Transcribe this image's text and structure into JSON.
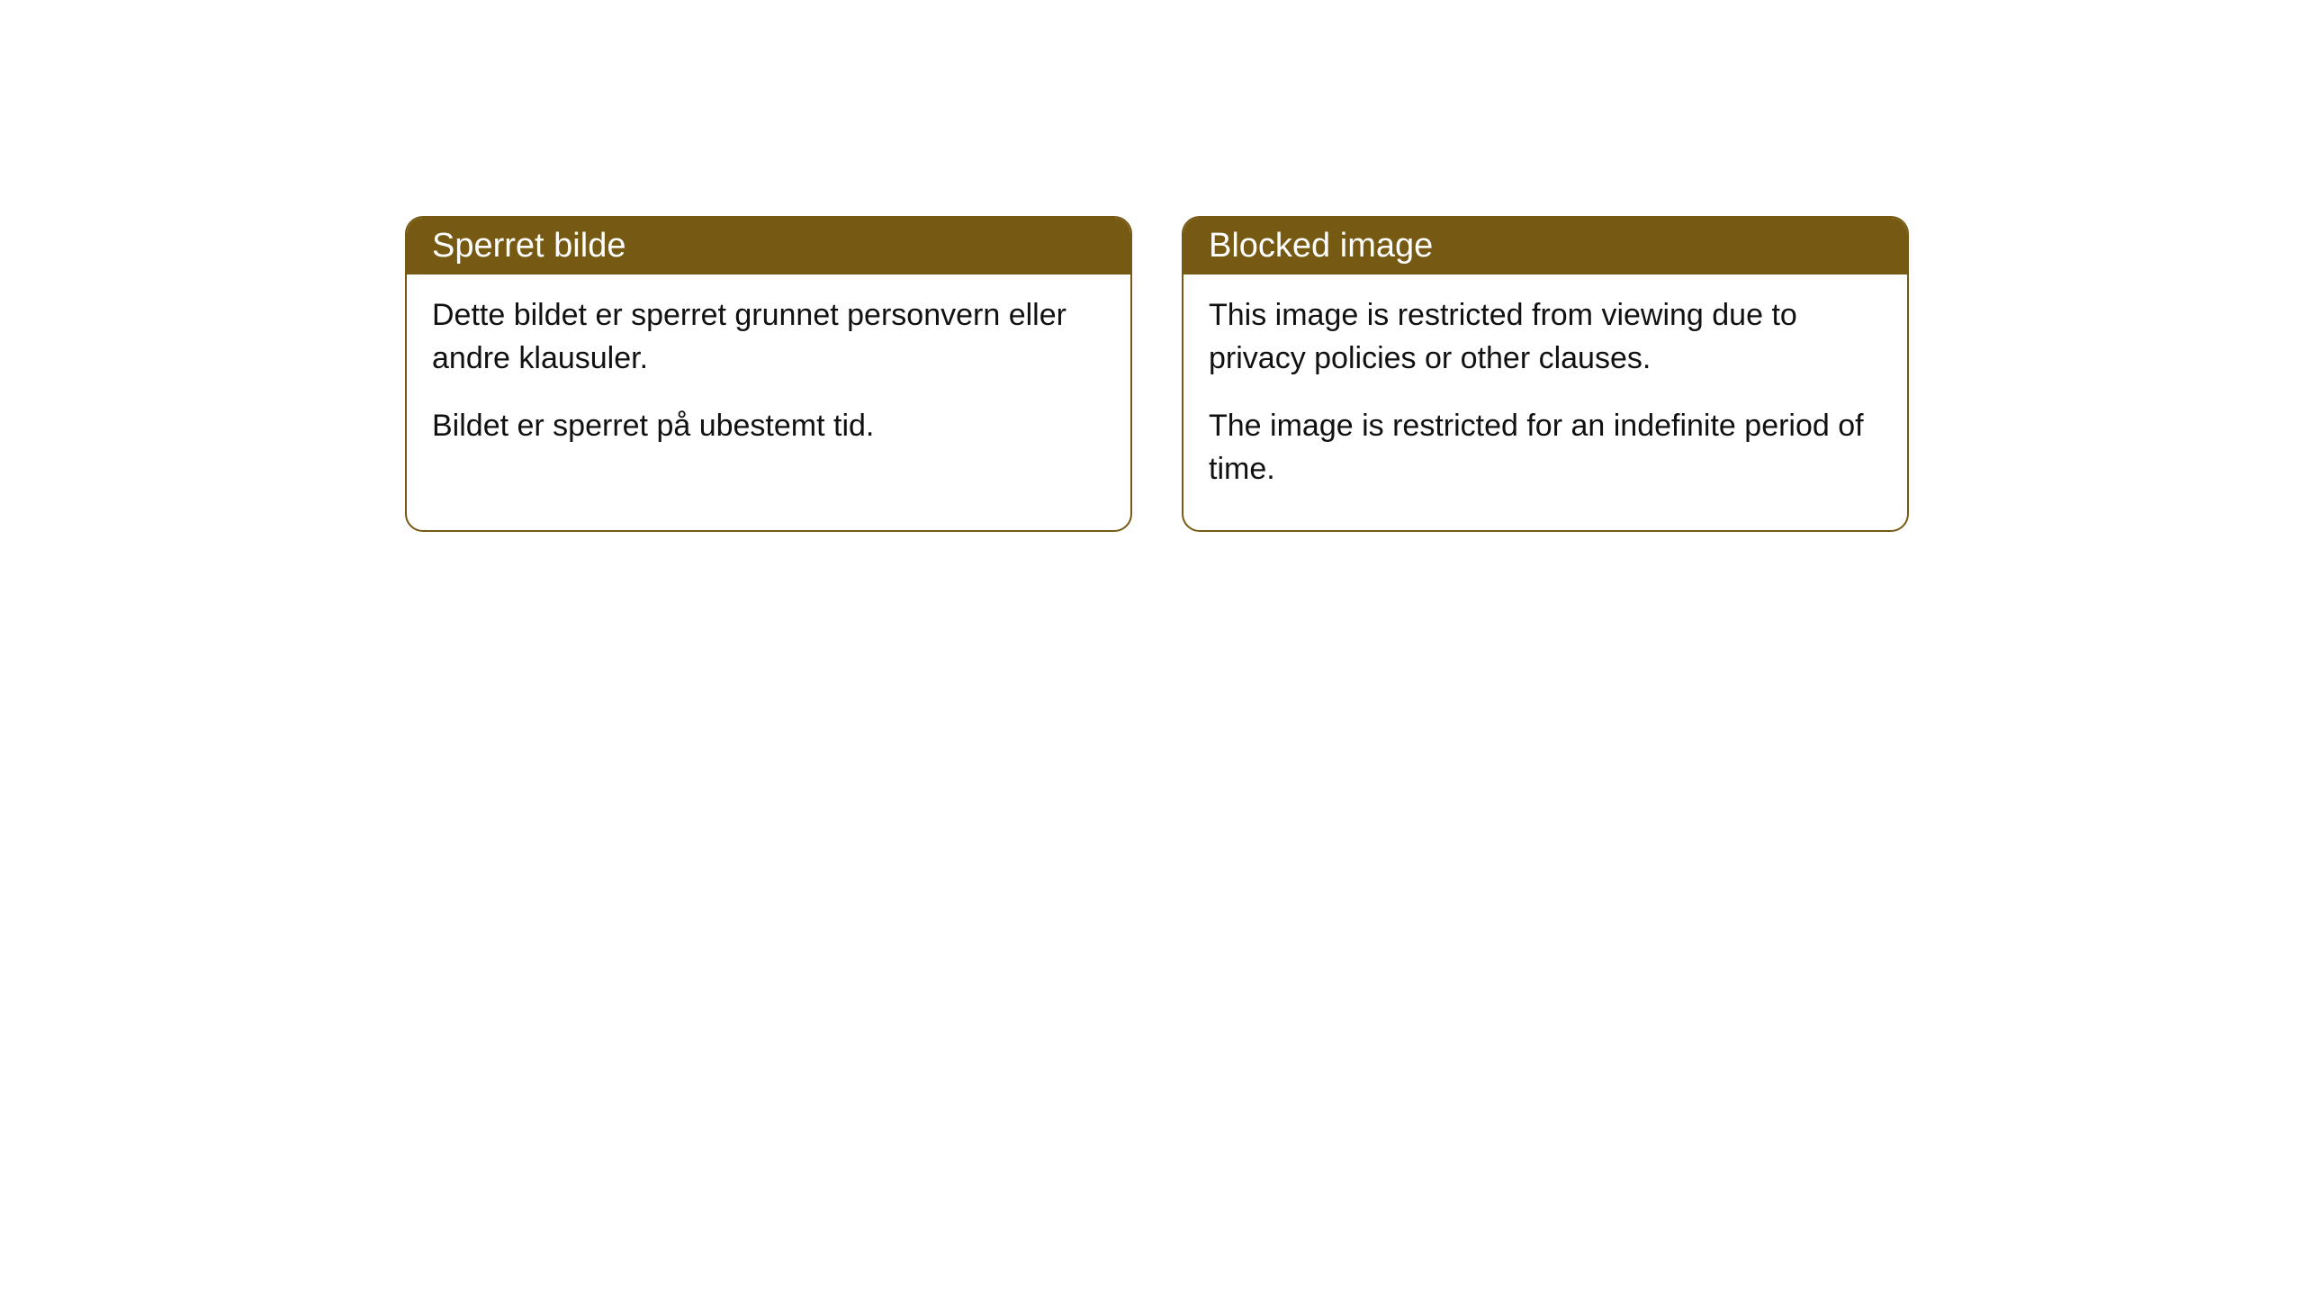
{
  "cards": [
    {
      "title": "Sperret bilde",
      "paragraph1": "Dette bildet er sperret grunnet personvern eller andre klausuler.",
      "paragraph2": "Bildet er sperret på ubestemt tid."
    },
    {
      "title": "Blocked image",
      "paragraph1": "This image is restricted from viewing due to privacy policies or other clauses.",
      "paragraph2": "The image is restricted for an indefinite period of time."
    }
  ],
  "style": {
    "header_background": "#765912",
    "header_text_color": "#ffffff",
    "border_color": "#765912",
    "body_text_color": "#111111",
    "card_background": "#ffffff",
    "page_background": "#ffffff",
    "border_radius": 20,
    "header_fontsize": 38,
    "body_fontsize": 34
  }
}
